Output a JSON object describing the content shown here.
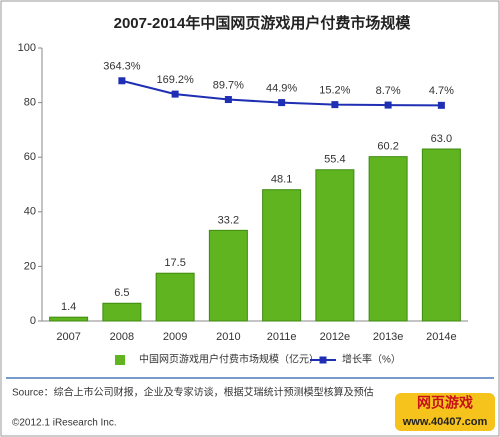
{
  "chart_data": {
    "type": "bar_line",
    "title": "2007-2014年中国网页游戏用户付费市场规模",
    "categories": [
      "2007",
      "2008",
      "2009",
      "2010",
      "2011e",
      "2012e",
      "2013e",
      "2014e"
    ],
    "series": [
      {
        "name": "中国网页游戏用户付费市场规模（亿元）",
        "type": "bar",
        "color": "#5fb41f",
        "values": [
          1.4,
          6.5,
          17.5,
          33.2,
          48.1,
          55.4,
          60.2,
          63.0
        ],
        "value_labels": [
          "1.4",
          "6.5",
          "17.5",
          "33.2",
          "48.1",
          "55.4",
          "60.2",
          "63.0"
        ]
      },
      {
        "name": "增长率（%）",
        "type": "line",
        "axis": "y2",
        "color": "#1f2fb4",
        "values": [
          null,
          364.3,
          169.2,
          89.7,
          44.9,
          15.2,
          8.7,
          4.7
        ],
        "value_labels": [
          null,
          "364.3%",
          "169.2%",
          "89.7%",
          "44.9%",
          "15.2%",
          "8.7%",
          "4.7%"
        ]
      }
    ],
    "ylim": [
      0,
      100
    ],
    "yticks": [
      0,
      20,
      40,
      60,
      80,
      100
    ],
    "y2lim": [
      -3152,
      844
    ],
    "source": "Source：综合上市公司财报，企业及专家访谈，根据艾瑞统计预测模型核算及预估",
    "copyright": "©2012.1 iResearch Inc.",
    "watermark": {
      "title": "网页游戏",
      "url": "www.40407.com"
    }
  }
}
